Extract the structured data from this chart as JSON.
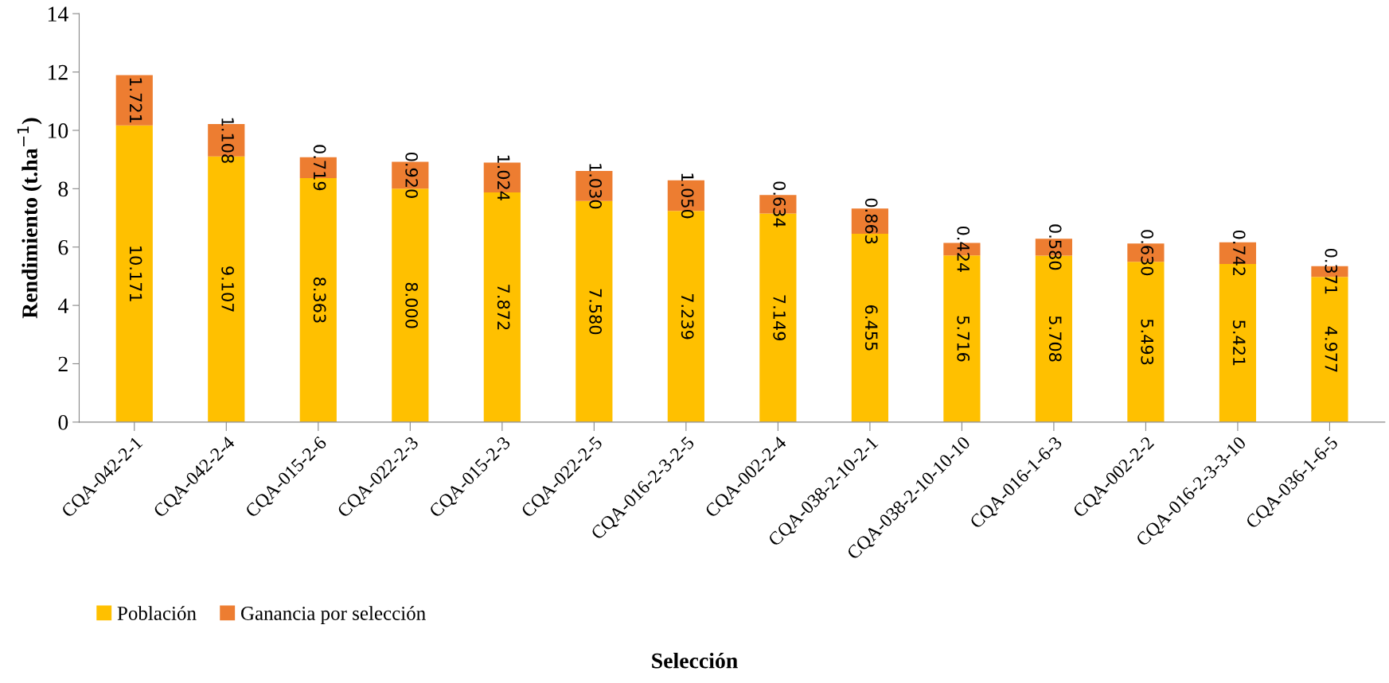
{
  "chart_data": {
    "type": "bar",
    "stacked": true,
    "xlabel": "Selección",
    "ylabel": "Rendimiento (t.ha$^{−1}$)",
    "categories": [
      "CQA-042-2-1",
      "CQA-042-2-4",
      "CQA-015-2-6",
      "CQA-022-2-3",
      "CQA-015-2-3",
      "CQA-022-2-5",
      "CQA-016-2-3-2-5",
      "CQA-002-2-4",
      "CQA-038-2-10-2-1",
      "CQA-038-2-10-10-10",
      "CQA-016-1-6-3",
      "CQA-002-2-2",
      "CQA-016-2-3-3-10",
      "CQA-036-1-6-5"
    ],
    "series": [
      {
        "name": "Población",
        "color": "#ffc000",
        "values": [
          10.171,
          9.107,
          8.363,
          8.0,
          7.872,
          7.58,
          7.239,
          7.149,
          6.455,
          5.716,
          5.708,
          5.493,
          5.421,
          4.977
        ],
        "value_labels": [
          "10.171",
          "9.107",
          "8.363",
          "8.000",
          "7.872",
          "7.580",
          "7.239",
          "7.149",
          "6.455",
          "5.716",
          "5.708",
          "5.493",
          "5.421",
          "4.977"
        ]
      },
      {
        "name": "Ganancia por selección",
        "color": "#ed7d31",
        "values": [
          1.721,
          1.108,
          0.719,
          0.92,
          1.024,
          1.03,
          1.05,
          0.634,
          0.863,
          0.424,
          0.58,
          0.63,
          0.742,
          0.371
        ],
        "value_labels": [
          "1.721",
          "1.108",
          "0.719",
          "0.920",
          "1.024",
          "1.030",
          "1.050",
          "0.634",
          "0.863",
          "0.424",
          "0.580",
          "0.630",
          "0.742",
          "0.371"
        ]
      }
    ],
    "ylim": [
      0,
      14
    ],
    "yticks": [
      0,
      2,
      4,
      6,
      8,
      10,
      12,
      14
    ],
    "grid": false,
    "legend": "bottom left"
  }
}
